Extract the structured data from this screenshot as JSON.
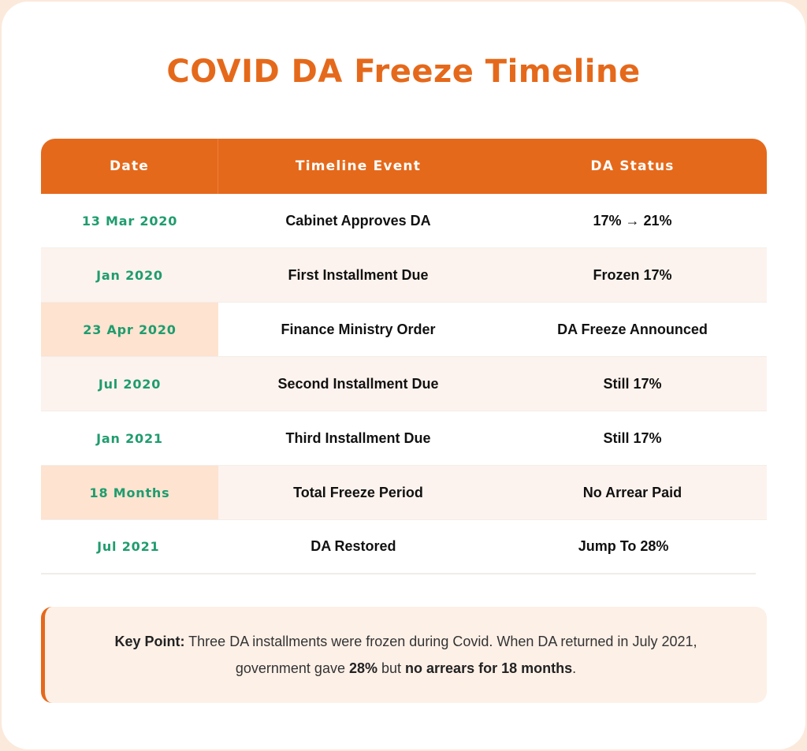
{
  "title": "COVID DA Freeze Timeline",
  "table": {
    "headers": [
      "Date",
      "Timeline Event",
      "DA Status"
    ],
    "rows": [
      {
        "date": "13 Mar 2020",
        "event": "Cabinet Approves DA",
        "status": "17% → 21%",
        "highlight": false,
        "alt": false
      },
      {
        "date": "Jan 2020",
        "event": "First Installment Due",
        "status": "Frozen 17%",
        "highlight": false,
        "alt": true
      },
      {
        "date": "23 Apr 2020",
        "event": "Finance Ministry Order",
        "status": "DA Freeze Announced",
        "highlight": true,
        "alt": false
      },
      {
        "date": "Jul 2020",
        "event": "Second Installment Due",
        "status": "Still 17%",
        "highlight": false,
        "alt": true
      },
      {
        "date": "Jan 2021",
        "event": "Third Installment Due",
        "status": "Still 17%",
        "highlight": false,
        "alt": false
      },
      {
        "date": "18 Months",
        "event": "Total Freeze Period",
        "status": "No Arrear Paid",
        "highlight": true,
        "alt": true
      },
      {
        "date": "Jul 2021",
        "event": "DA Restored",
        "status": "Jump To 28%",
        "highlight": false,
        "alt": false
      }
    ]
  },
  "key_point": {
    "label": "Key Point:",
    "text_1": " Three DA installments were frozen during Covid. When DA returned in July 2021, government gave ",
    "bold_1": "28%",
    "text_2": " but ",
    "bold_2": "no arrears for 18 months",
    "text_3": "."
  },
  "colors": {
    "accent": "#e5691b",
    "date_green": "#1f9c6e",
    "row_alt": "#fdf3ee",
    "date_highlight": "#fde3d0",
    "callout_bg": "#fdf0e7"
  }
}
